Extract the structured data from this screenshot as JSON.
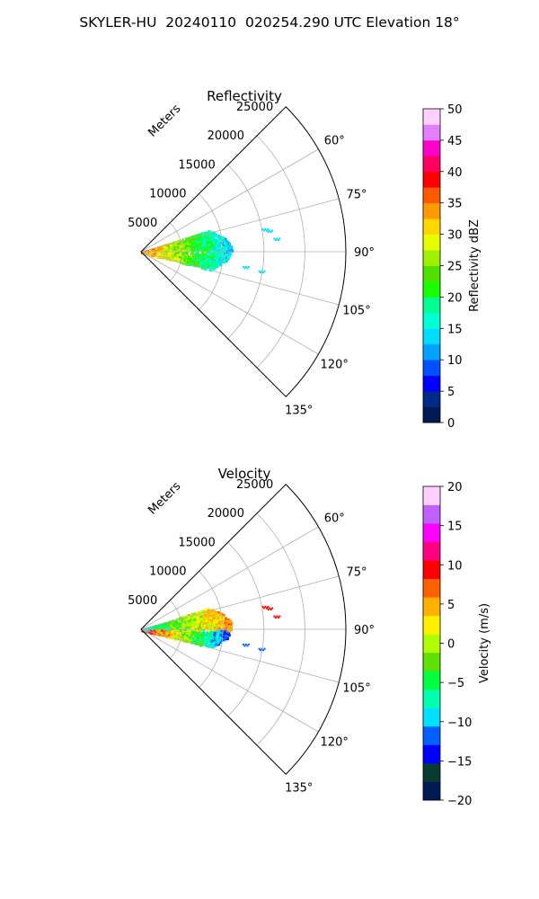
{
  "suptitle": "SKYLER-HU  20240110  020254.290 UTC Elevation 18°",
  "chart_data": [
    {
      "type": "polar-sector",
      "title": "Reflectivity",
      "range_label": "Meters",
      "range_ticks": [
        5000,
        10000,
        15000,
        20000,
        25000
      ],
      "range_tick_labels": [
        "5000",
        "10000",
        "15000",
        "20000",
        "25000"
      ],
      "range_max": 25000,
      "angle_ticks": [
        60,
        75,
        90,
        105,
        120,
        135
      ],
      "angle_tick_labels": [
        "60°",
        "75°",
        "90°",
        "105°",
        "120°",
        "135°"
      ],
      "angle_range": [
        45,
        135
      ],
      "grid": true,
      "colorbar": {
        "label": "Reflectivity dBZ",
        "min": 0,
        "max": 50,
        "ticks": [
          0,
          5,
          10,
          15,
          20,
          25,
          30,
          35,
          40,
          45,
          50
        ],
        "tick_labels": [
          "0",
          "5",
          "10",
          "15",
          "20",
          "25",
          "30",
          "35",
          "40",
          "45",
          "50"
        ],
        "colors": [
          "#001a52",
          "#002a8a",
          "#0000ff",
          "#0050ff",
          "#00a0ff",
          "#00dcff",
          "#00ffd2",
          "#00ff90",
          "#1aff00",
          "#50e000",
          "#a0f000",
          "#e6ff00",
          "#ffd700",
          "#ff9a00",
          "#ff5a00",
          "#ff0000",
          "#ff0060",
          "#ff00c8",
          "#e080ff",
          "#ffd0ff"
        ]
      },
      "data_extent": {
        "range_min": 0,
        "range_max": 11000,
        "angle_min": 72,
        "angle_max": 104
      }
    },
    {
      "type": "polar-sector",
      "title": "Velocity",
      "range_label": "Meters",
      "range_ticks": [
        5000,
        10000,
        15000,
        20000,
        25000
      ],
      "range_tick_labels": [
        "5000",
        "10000",
        "15000",
        "20000",
        "25000"
      ],
      "range_max": 25000,
      "angle_ticks": [
        60,
        75,
        90,
        105,
        120,
        135
      ],
      "angle_tick_labels": [
        "60°",
        "75°",
        "90°",
        "105°",
        "120°",
        "135°"
      ],
      "angle_range": [
        45,
        135
      ],
      "grid": true,
      "colorbar": {
        "label": "Velocity (m/s)",
        "min": -20,
        "max": 20,
        "ticks": [
          -20,
          -15,
          -10,
          -5,
          0,
          5,
          10,
          15,
          20
        ],
        "tick_labels": [
          "−20",
          "−15",
          "−10",
          "−5",
          "0",
          "5",
          "10",
          "15",
          "20"
        ],
        "colors": [
          "#001a52",
          "#0a3a30",
          "#0000ff",
          "#0060ff",
          "#00e0ff",
          "#00ffb0",
          "#00ff40",
          "#60e000",
          "#b0ff00",
          "#fff000",
          "#ffb000",
          "#ff6000",
          "#ff0000",
          "#ff0080",
          "#ff00ff",
          "#c060ff",
          "#ffd0ff"
        ]
      },
      "data_extent": {
        "range_min": 0,
        "range_max": 11000,
        "angle_min": 72,
        "angle_max": 104
      }
    }
  ]
}
